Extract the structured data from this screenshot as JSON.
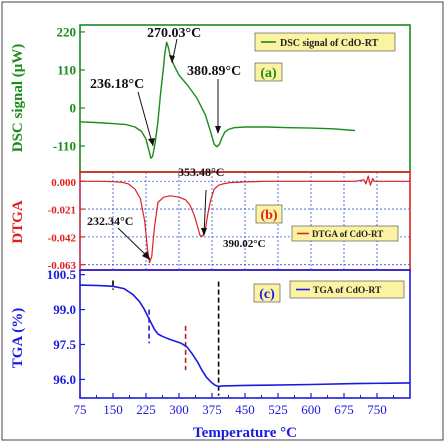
{
  "chart_data": [
    {
      "type": "line",
      "panel_label": "(a)",
      "ylabel": "DSC signal (μW)",
      "yticks": [
        220,
        110,
        0,
        -110
      ],
      "ylim": [
        -185,
        240
      ],
      "xlim": [
        75,
        825
      ],
      "legend": "DSC signal of CdO-RT",
      "legend_position": "top-right",
      "grid": false,
      "colors": {
        "line": "#1a8c1a",
        "frame": "#1a8c1a",
        "legend_bg": "#fbf3a2"
      },
      "annotations": [
        {
          "text": "270.03°C",
          "x": 270.03
        },
        {
          "text": "236.18°C",
          "x": 236.18
        },
        {
          "text": "380.89°C",
          "x": 380.89
        }
      ],
      "series": [
        {
          "x": [
            75,
            110,
            150,
            180,
            200,
            215,
            225,
            232,
            236,
            240,
            246,
            252,
            258,
            264,
            268,
            272,
            276,
            280,
            290,
            300,
            320,
            340,
            360,
            372,
            380,
            386,
            392,
            398,
            404,
            412,
            425,
            450,
            500,
            550,
            600,
            650,
            700
          ],
          "y": [
            -40,
            -42,
            -45,
            -48,
            -55,
            -68,
            -90,
            -125,
            -145,
            -140,
            -100,
            -40,
            40,
            110,
            160,
            190,
            175,
            150,
            120,
            95,
            65,
            30,
            -20,
            -70,
            -105,
            -112,
            -105,
            -85,
            -70,
            -62,
            -57,
            -55,
            -55,
            -57,
            -58,
            -60,
            -65
          ]
        }
      ]
    },
    {
      "type": "line",
      "panel_label": "(b)",
      "ylabel": "DTGA",
      "yticks": [
        0.0,
        -0.021,
        -0.042,
        -0.063
      ],
      "yticklabels": [
        "0.000",
        "-0.021",
        "-0.042",
        "-0.063"
      ],
      "ylim": [
        -0.067,
        0.007
      ],
      "xlim": [
        75,
        825
      ],
      "legend": "DTGA of CdO-RT",
      "legend_position": "center-right",
      "grid": true,
      "colors": {
        "line": "#e02020",
        "frame": "#e02020",
        "grid": "#3355dd",
        "legend_bg": "#fbf3a2"
      },
      "annotations": [
        {
          "text": "232.34°C",
          "x": 232.34
        },
        {
          "text": "353.48°C",
          "x": 353.48
        },
        {
          "text": "390.02°C",
          "x": 390.02
        }
      ],
      "series": [
        {
          "x": [
            75,
            120,
            150,
            170,
            185,
            200,
            212,
            222,
            228,
            233,
            238,
            244,
            252,
            265,
            280,
            300,
            315,
            325,
            335,
            342,
            348,
            354,
            360,
            366,
            372,
            380,
            390,
            400,
            415,
            450,
            500,
            600,
            700,
            720,
            725,
            730,
            735,
            740,
            745,
            760,
            800,
            825
          ],
          "y": [
            0.0,
            0.0,
            -0.0003,
            -0.0008,
            -0.002,
            -0.006,
            -0.013,
            -0.03,
            -0.05,
            -0.0615,
            -0.057,
            -0.035,
            -0.016,
            -0.012,
            -0.011,
            -0.012,
            -0.014,
            -0.018,
            -0.026,
            -0.034,
            -0.041,
            -0.0415,
            -0.036,
            -0.024,
            -0.014,
            -0.006,
            -0.003,
            -0.002,
            -0.001,
            -0.0005,
            0.0,
            0.0,
            0.0,
            0.001,
            -0.002,
            0.004,
            -0.003,
            0.002,
            0.0,
            0.0,
            0.0,
            0.0
          ]
        }
      ]
    },
    {
      "type": "line",
      "panel_label": "(c)",
      "ylabel": "TGA (%)",
      "xlabel": "Temperature °C",
      "yticks": [
        100.5,
        99.0,
        97.5,
        96.0
      ],
      "yticklabels": [
        "100.5",
        "99.0",
        "97.5",
        "96.0"
      ],
      "ylim": [
        95.2,
        100.7
      ],
      "xlim": [
        75,
        825
      ],
      "xticks": [
        75,
        150,
        225,
        300,
        375,
        450,
        525,
        600,
        675,
        750
      ],
      "legend": "TGA of CdO-RT",
      "legend_position": "top-right",
      "grid": false,
      "colors": {
        "line": "#1a1ae0",
        "frame": "#1a1ae0",
        "legend_bg": "#fbf3a2",
        "axis_text": "#1a1ae0"
      },
      "markers_x": [
        {
          "x": 150,
          "color": "#000000"
        },
        {
          "x": 232,
          "color": "#1a1ae0"
        },
        {
          "x": 315,
          "color": "#b02020"
        },
        {
          "x": 390,
          "color": "#000000"
        }
      ],
      "series": [
        {
          "x": [
            75,
            120,
            150,
            175,
            195,
            210,
            220,
            228,
            236,
            244,
            252,
            262,
            275,
            290,
            305,
            318,
            330,
            342,
            352,
            362,
            372,
            382,
            390,
            400,
            450,
            500,
            600,
            700,
            825
          ],
          "y": [
            100.05,
            100.03,
            100.0,
            99.9,
            99.65,
            99.35,
            99.05,
            98.75,
            98.45,
            98.15,
            97.95,
            97.85,
            97.75,
            97.65,
            97.55,
            97.4,
            97.1,
            96.75,
            96.4,
            96.1,
            95.9,
            95.75,
            95.7,
            95.72,
            95.74,
            95.75,
            95.78,
            95.82,
            95.85
          ]
        }
      ]
    }
  ]
}
